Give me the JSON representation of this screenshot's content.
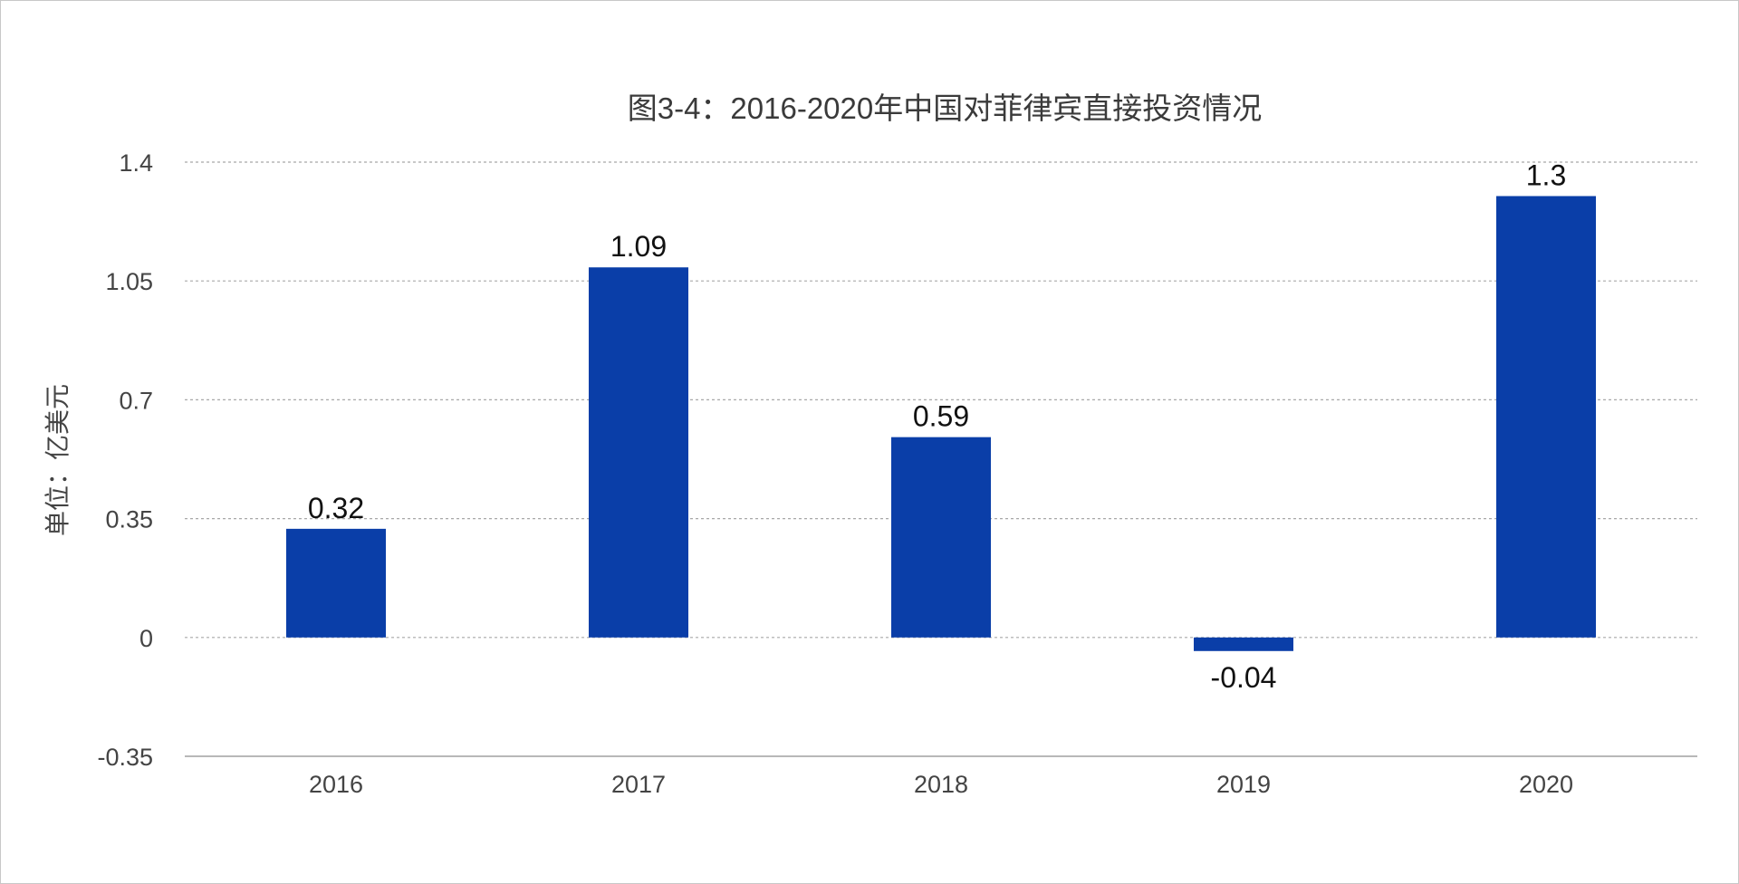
{
  "chart_data": {
    "type": "bar",
    "title": "图3-4：2016-2020年中国对菲律宾直接投资情况",
    "xlabel": "",
    "ylabel": "单位：亿美元",
    "categories": [
      "2016",
      "2017",
      "2018",
      "2019",
      "2020"
    ],
    "values": [
      0.32,
      1.09,
      0.59,
      -0.04,
      1.3
    ],
    "value_labels": [
      "0.32",
      "1.09",
      "0.59",
      "-0.04",
      "1.3"
    ],
    "ylim": [
      -0.35,
      1.4
    ],
    "yticks": [
      -0.35,
      0,
      0.35,
      0.7,
      1.05,
      1.4
    ],
    "ytick_labels": [
      "-0.35",
      "0",
      "0.35",
      "0.7",
      "1.05",
      "1.4"
    ],
    "grid": true,
    "legend": "none",
    "colors": {
      "bar": "#0a3ea8",
      "grid": "#a8a8a8",
      "axis": "#a0a0a0",
      "text": "#444444",
      "label": "#111111"
    }
  }
}
